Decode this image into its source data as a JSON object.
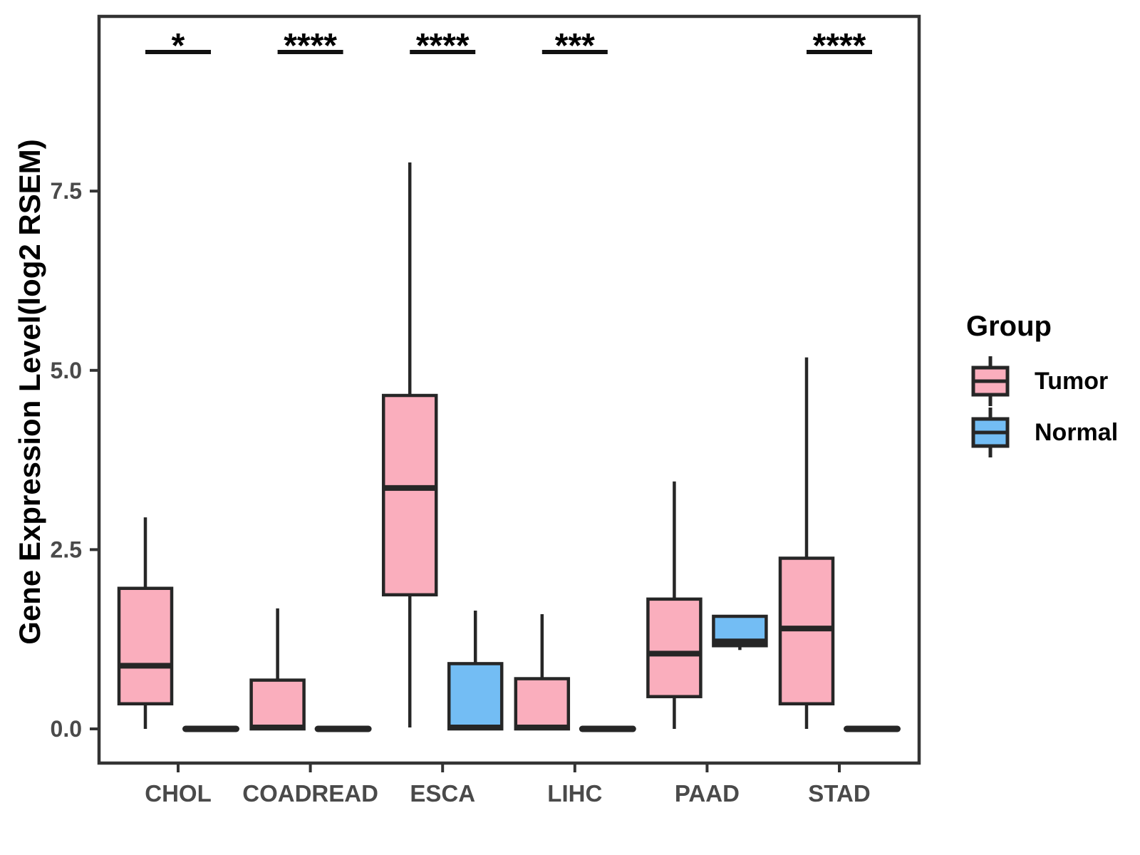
{
  "chart_data": {
    "type": "boxplot",
    "title": "",
    "ylabel": "Gene Expression Level(log2 RSEM)",
    "xlabel": "",
    "categories": [
      "CHOL",
      "COADREAD",
      "ESCA",
      "LIHC",
      "PAAD",
      "STAD"
    ],
    "y_ticks": [
      {
        "value": 0.0,
        "label": "0.0"
      },
      {
        "value": 2.5,
        "label": "2.5"
      },
      {
        "value": 5.0,
        "label": "5.0"
      },
      {
        "value": 7.5,
        "label": "7.5"
      }
    ],
    "ylim": [
      -0.5,
      9.94
    ],
    "grid": false,
    "series": [
      {
        "name": "Tumor",
        "color": "#FAAEBD",
        "boxes": [
          {
            "min": 0.0,
            "q1": 0.35,
            "median": 0.88,
            "q3": 1.96,
            "max": 2.95
          },
          {
            "min": 0.0,
            "q1": 0.0,
            "median": 0.02,
            "q3": 0.68,
            "max": 1.68
          },
          {
            "min": 0.02,
            "q1": 1.87,
            "median": 3.36,
            "q3": 4.65,
            "max": 7.9
          },
          {
            "min": 0.0,
            "q1": 0.0,
            "median": 0.02,
            "q3": 0.7,
            "max": 1.6
          },
          {
            "min": 0.0,
            "q1": 0.45,
            "median": 1.05,
            "q3": 1.81,
            "max": 3.45
          },
          {
            "min": 0.0,
            "q1": 0.35,
            "median": 1.4,
            "q3": 2.38,
            "max": 5.18
          }
        ]
      },
      {
        "name": "Normal",
        "color": "#73BDF4",
        "boxes": [
          {
            "min": 0.0,
            "q1": 0.0,
            "median": 0.0,
            "q3": 0.0,
            "max": 0.0
          },
          {
            "min": 0.0,
            "q1": 0.0,
            "median": 0.0,
            "q3": 0.0,
            "max": 0.0
          },
          {
            "min": 0.0,
            "q1": 0.0,
            "median": 0.02,
            "q3": 0.91,
            "max": 1.65
          },
          {
            "min": 0.0,
            "q1": 0.0,
            "median": 0.0,
            "q3": 0.0,
            "max": 0.0
          },
          {
            "min": 1.1,
            "q1": 1.16,
            "median": 1.22,
            "q3": 1.57,
            "max": 1.57
          },
          {
            "min": 0.0,
            "q1": 0.0,
            "median": 0.0,
            "q3": 0.0,
            "max": 0.0
          }
        ]
      }
    ],
    "significance": [
      "*",
      "****",
      "****",
      "***",
      "",
      "****"
    ],
    "legend": {
      "title": "Group",
      "position": "right"
    }
  },
  "colors": {
    "box_stroke": "#262626",
    "panel_border": "#333333",
    "axis_text": "#4a4a4a",
    "significance": "#111111"
  }
}
